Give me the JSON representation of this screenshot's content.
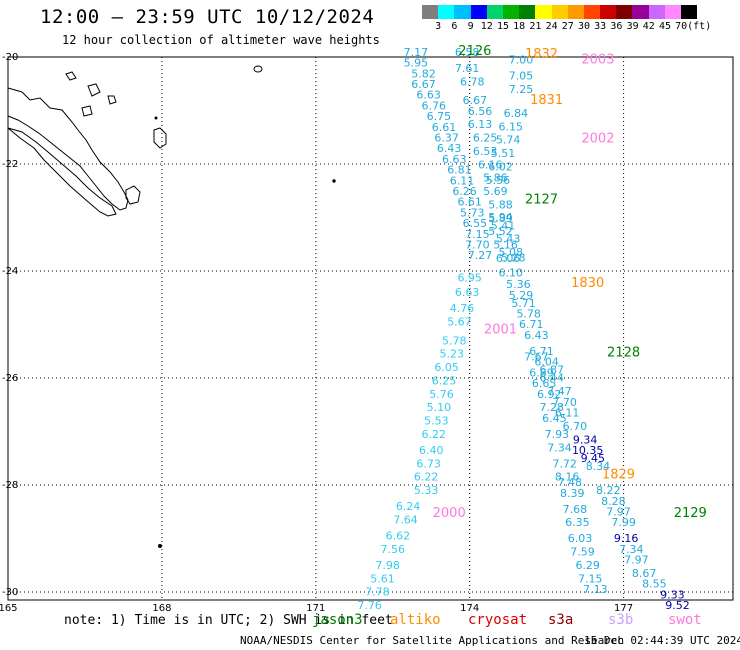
{
  "header": {
    "title": "12:00 – 23:59 UTC 10/12/2024",
    "subtitle": "12 hour collection of altimeter wave heights"
  },
  "colorbar": {
    "labels": [
      "3",
      "6",
      "9",
      "12",
      "15",
      "18",
      "21",
      "24",
      "27",
      "30",
      "33",
      "36",
      "39",
      "42",
      "45",
      "70"
    ],
    "unit": "(ft)",
    "colors": [
      "#7f7f7f",
      "#00ffff",
      "#00bfff",
      "#0000ff",
      "#00d46a",
      "#00b300",
      "#008000",
      "#ffff00",
      "#ffcc00",
      "#ff9900",
      "#ff4500",
      "#cc0000",
      "#800000",
      "#990099",
      "#cc66ff",
      "#ff88ff",
      "#000000"
    ]
  },
  "map": {
    "x_ticks": [
      "165",
      "168",
      "171",
      "174",
      "177"
    ],
    "y_ticks": [
      "-20",
      "-22",
      "-24",
      "-26",
      "-28",
      "-30"
    ],
    "colors": {
      "land": "#000000",
      "grid": "#000000",
      "swh_light": "#22aadd",
      "swh_cyan": "#33ccee",
      "swh_dark": "#0000aa",
      "label_green": "#008000",
      "label_orange": "#ff8c00",
      "label_pink": "#ff77dd"
    }
  },
  "pass_labels": [
    {
      "text": "2126",
      "color": "green",
      "lon": 174.1,
      "lat": -19.96
    },
    {
      "text": "1832",
      "color": "orange",
      "lon": 175.4,
      "lat": -20.02
    },
    {
      "text": "2003",
      "color": "pink",
      "lon": 176.5,
      "lat": -20.12
    },
    {
      "text": "1831",
      "color": "orange",
      "lon": 175.5,
      "lat": -20.88
    },
    {
      "text": "2002",
      "color": "pink",
      "lon": 176.5,
      "lat": -21.6
    },
    {
      "text": "2127",
      "color": "green",
      "lon": 175.4,
      "lat": -22.74
    },
    {
      "text": "1830",
      "color": "orange",
      "lon": 176.3,
      "lat": -24.3
    },
    {
      "text": "2001",
      "color": "pink",
      "lon": 174.6,
      "lat": -25.17
    },
    {
      "text": "2128",
      "color": "green",
      "lon": 177.0,
      "lat": -25.6
    },
    {
      "text": "1829",
      "color": "orange",
      "lon": 176.9,
      "lat": -27.88
    },
    {
      "text": "2000",
      "color": "pink",
      "lon": 173.6,
      "lat": -28.6
    },
    {
      "text": "2129",
      "color": "green",
      "lon": 178.3,
      "lat": -28.6
    }
  ],
  "swh_tracks": [
    {
      "color": "light",
      "points": [
        {
          "v": "7.17",
          "lon": 172.95,
          "lat": -19.98
        },
        {
          "v": "5.95",
          "lon": 172.95,
          "lat": -20.18
        },
        {
          "v": "5.82",
          "lon": 173.1,
          "lat": -20.38
        },
        {
          "v": "6.67",
          "lon": 173.1,
          "lat": -20.58
        },
        {
          "v": "6.63",
          "lon": 173.2,
          "lat": -20.78
        },
        {
          "v": "6.76",
          "lon": 173.3,
          "lat": -20.98
        },
        {
          "v": "6.75",
          "lon": 173.4,
          "lat": -21.18
        },
        {
          "v": "6.61",
          "lon": 173.5,
          "lat": -21.38
        },
        {
          "v": "6.37",
          "lon": 173.55,
          "lat": -21.58
        },
        {
          "v": "6.43",
          "lon": 173.6,
          "lat": -21.78
        },
        {
          "v": "6.63",
          "lon": 173.7,
          "lat": -21.98
        },
        {
          "v": "6.81",
          "lon": 173.8,
          "lat": -22.18
        },
        {
          "v": "6.11",
          "lon": 173.85,
          "lat": -22.38
        },
        {
          "v": "6.26",
          "lon": 173.9,
          "lat": -22.58
        },
        {
          "v": "6.61",
          "lon": 174.0,
          "lat": -22.78
        },
        {
          "v": "5.73",
          "lon": 174.05,
          "lat": -22.98
        },
        {
          "v": "6.55",
          "lon": 174.1,
          "lat": -23.18
        },
        {
          "v": "7.15",
          "lon": 174.15,
          "lat": -23.38
        },
        {
          "v": "7.70",
          "lon": 174.15,
          "lat": -23.58
        },
        {
          "v": "7.27",
          "lon": 174.2,
          "lat": -23.78
        }
      ]
    },
    {
      "color": "light",
      "points": [
        {
          "v": "6.58",
          "lon": 173.95,
          "lat": -19.98
        },
        {
          "v": "7.61",
          "lon": 173.95,
          "lat": -20.28
        },
        {
          "v": "6.78",
          "lon": 174.05,
          "lat": -20.53
        },
        {
          "v": "6.67",
          "lon": 174.1,
          "lat": -20.88
        },
        {
          "v": "6.56",
          "lon": 174.2,
          "lat": -21.08
        },
        {
          "v": "6.13",
          "lon": 174.2,
          "lat": -21.33
        },
        {
          "v": "6.25",
          "lon": 174.3,
          "lat": -21.58
        },
        {
          "v": "6.53",
          "lon": 174.3,
          "lat": -21.83
        },
        {
          "v": "6.16",
          "lon": 174.4,
          "lat": -22.08
        },
        {
          "v": "5.86",
          "lon": 174.5,
          "lat": -22.33
        },
        {
          "v": "5.69",
          "lon": 174.5,
          "lat": -22.58
        },
        {
          "v": "5.88",
          "lon": 174.6,
          "lat": -22.83
        },
        {
          "v": "5.89",
          "lon": 174.6,
          "lat": -23.08
        },
        {
          "v": "5.52",
          "lon": 174.6,
          "lat": -23.33
        },
        {
          "v": "5.16",
          "lon": 174.7,
          "lat": -23.58
        },
        {
          "v": "6.06",
          "lon": 174.75,
          "lat": -23.83
        }
      ]
    },
    {
      "color": "light",
      "points": [
        {
          "v": "7.00",
          "lon": 175.0,
          "lat": -20.12
        },
        {
          "v": "7.05",
          "lon": 175.0,
          "lat": -20.42
        },
        {
          "v": "7.25",
          "lon": 175.0,
          "lat": -20.67
        },
        {
          "v": "6.84",
          "lon": 174.9,
          "lat": -21.12
        },
        {
          "v": "6.15",
          "lon": 174.8,
          "lat": -21.37
        },
        {
          "v": "5.74",
          "lon": 174.75,
          "lat": -21.62
        },
        {
          "v": "5.51",
          "lon": 174.65,
          "lat": -21.87
        },
        {
          "v": "6.02",
          "lon": 174.6,
          "lat": -22.12
        },
        {
          "v": "5.56",
          "lon": 174.55,
          "lat": -22.37
        },
        {
          "v": "5.94",
          "lon": 174.6,
          "lat": -23.07
        },
        {
          "v": "5.41",
          "lon": 174.65,
          "lat": -23.22
        },
        {
          "v": "5.43",
          "lon": 174.75,
          "lat": -23.47
        },
        {
          "v": "5.08",
          "lon": 174.8,
          "lat": -23.72
        },
        {
          "v": "5.28",
          "lon": 174.85,
          "lat": -23.82
        },
        {
          "v": "6.10",
          "lon": 174.8,
          "lat": -24.1
        },
        {
          "v": "5.36",
          "lon": 174.95,
          "lat": -24.32
        },
        {
          "v": "5.29",
          "lon": 175.0,
          "lat": -24.52
        },
        {
          "v": "5.71",
          "lon": 175.05,
          "lat": -24.67
        },
        {
          "v": "5.78",
          "lon": 175.15,
          "lat": -24.87
        },
        {
          "v": "6.71",
          "lon": 175.2,
          "lat": -25.07
        },
        {
          "v": "6.43",
          "lon": 175.3,
          "lat": -25.27
        },
        {
          "v": "6.71",
          "lon": 175.4,
          "lat": -25.57
        },
        {
          "v": "6.04",
          "lon": 175.5,
          "lat": -25.77
        },
        {
          "v": "6.87",
          "lon": 175.6,
          "lat": -25.92
        },
        {
          "v": "6.44",
          "lon": 175.6,
          "lat": -26.07
        },
        {
          "v": "7.47",
          "lon": 175.75,
          "lat": -26.32
        },
        {
          "v": "7.70",
          "lon": 175.85,
          "lat": -26.52
        },
        {
          "v": "6.11",
          "lon": 175.9,
          "lat": -26.72
        },
        {
          "v": "6.70",
          "lon": 176.05,
          "lat": -26.97
        }
      ]
    },
    {
      "color": "cyan",
      "points": [
        {
          "v": "6.95",
          "lon": 174.0,
          "lat": -24.2
        },
        {
          "v": "6.63",
          "lon": 173.95,
          "lat": -24.47
        },
        {
          "v": "4.76",
          "lon": 173.85,
          "lat": -24.77
        },
        {
          "v": "5.67",
          "lon": 173.8,
          "lat": -25.02
        },
        {
          "v": "5.78",
          "lon": 173.7,
          "lat": -25.37
        },
        {
          "v": "5.23",
          "lon": 173.65,
          "lat": -25.62
        },
        {
          "v": "6.05",
          "lon": 173.55,
          "lat": -25.87
        },
        {
          "v": "6.25",
          "lon": 173.5,
          "lat": -26.12
        },
        {
          "v": "5.76",
          "lon": 173.45,
          "lat": -26.37
        },
        {
          "v": "5.10",
          "lon": 173.4,
          "lat": -26.62
        },
        {
          "v": "5.53",
          "lon": 173.35,
          "lat": -26.87
        },
        {
          "v": "6.22",
          "lon": 173.3,
          "lat": -27.12
        },
        {
          "v": "6.40",
          "lon": 173.25,
          "lat": -27.42
        },
        {
          "v": "6.73",
          "lon": 173.2,
          "lat": -27.67
        },
        {
          "v": "6.22",
          "lon": 173.15,
          "lat": -27.92
        },
        {
          "v": "5.33",
          "lon": 173.15,
          "lat": -28.17
        }
      ]
    },
    {
      "color": "light",
      "points": [
        {
          "v": "7.67",
          "lon": 175.3,
          "lat": -25.67
        },
        {
          "v": "6.89",
          "lon": 175.4,
          "lat": -25.97
        },
        {
          "v": "6.65",
          "lon": 175.45,
          "lat": -26.17
        },
        {
          "v": "6.92",
          "lon": 175.55,
          "lat": -26.37
        },
        {
          "v": "7.28",
          "lon": 175.6,
          "lat": -26.62
        },
        {
          "v": "6.45",
          "lon": 175.65,
          "lat": -26.82
        },
        {
          "v": "7.93",
          "lon": 175.7,
          "lat": -27.12
        },
        {
          "v": "7.34",
          "lon": 175.75,
          "lat": -27.37
        },
        {
          "v": "7.72",
          "lon": 175.85,
          "lat": -27.67
        },
        {
          "v": "8.16",
          "lon": 175.9,
          "lat": -27.92
        },
        {
          "v": "7.48",
          "lon": 175.95,
          "lat": -28.02
        },
        {
          "v": "8.39",
          "lon": 176.0,
          "lat": -28.22
        },
        {
          "v": "7.68",
          "lon": 176.05,
          "lat": -28.52
        },
        {
          "v": "6.35",
          "lon": 176.1,
          "lat": -28.77
        },
        {
          "v": "6.03",
          "lon": 176.15,
          "lat": -29.07
        },
        {
          "v": "7.59",
          "lon": 176.2,
          "lat": -29.32
        },
        {
          "v": "6.29",
          "lon": 176.3,
          "lat": -29.57
        },
        {
          "v": "7.15",
          "lon": 176.35,
          "lat": -29.82
        },
        {
          "v": "7.13",
          "lon": 176.45,
          "lat": -30.02
        }
      ]
    },
    {
      "color": "light",
      "points": [
        {
          "v": "8.34",
          "lon": 176.5,
          "lat": -27.72
        },
        {
          "v": "8.22",
          "lon": 176.7,
          "lat": -28.17
        },
        {
          "v": "8.28",
          "lon": 176.8,
          "lat": -28.37
        },
        {
          "v": "7.97",
          "lon": 176.9,
          "lat": -28.57
        },
        {
          "v": "7.99",
          "lon": 177.0,
          "lat": -28.77
        },
        {
          "v": "7.34",
          "lon": 177.15,
          "lat": -29.27
        },
        {
          "v": "7.97",
          "lon": 177.25,
          "lat": -29.47
        },
        {
          "v": "8.67",
          "lon": 177.4,
          "lat": -29.72
        },
        {
          "v": "8.55",
          "lon": 177.6,
          "lat": -29.92
        }
      ]
    },
    {
      "color": "dark",
      "points": [
        {
          "v": "9.34",
          "lon": 176.25,
          "lat": -27.22
        },
        {
          "v": "10.35",
          "lon": 176.3,
          "lat": -27.42
        },
        {
          "v": "9.45",
          "lon": 176.4,
          "lat": -27.57
        },
        {
          "v": "9.16",
          "lon": 177.05,
          "lat": -29.07
        },
        {
          "v": "9.33",
          "lon": 177.95,
          "lat": -30.12
        },
        {
          "v": "9.52",
          "lon": 178.05,
          "lat": -30.32
        }
      ]
    },
    {
      "color": "cyan",
      "points": [
        {
          "v": "6.24",
          "lon": 172.8,
          "lat": -28.47
        },
        {
          "v": "7.64",
          "lon": 172.75,
          "lat": -28.72
        },
        {
          "v": "6.62",
          "lon": 172.6,
          "lat": -29.02
        },
        {
          "v": "7.56",
          "lon": 172.5,
          "lat": -29.27
        },
        {
          "v": "7.98",
          "lon": 172.4,
          "lat": -29.57
        },
        {
          "v": "5.61",
          "lon": 172.3,
          "lat": -29.82
        },
        {
          "v": "7.78",
          "lon": 172.2,
          "lat": -30.07
        },
        {
          "v": "7.76",
          "lon": 172.05,
          "lat": -30.32
        }
      ]
    }
  ],
  "note": "note: 1) Time is in UTC; 2) SWH is in feet",
  "sat_legend": [
    {
      "text": "jason3",
      "color": "#008000"
    },
    {
      "text": "altiko",
      "color": "#ff8c00"
    },
    {
      "text": "cryosat",
      "color": "#dd0000"
    },
    {
      "text": "s3a",
      "color": "#8b0000"
    },
    {
      "text": "s3b",
      "color": "#c8a0ff"
    },
    {
      "text": "swot",
      "color": "#ff77dd"
    }
  ],
  "footer": "NOAA/NESDIS Center for Satellite Applications and Research",
  "footer_time": "15 Dec 02:44:39 UTC 2024"
}
